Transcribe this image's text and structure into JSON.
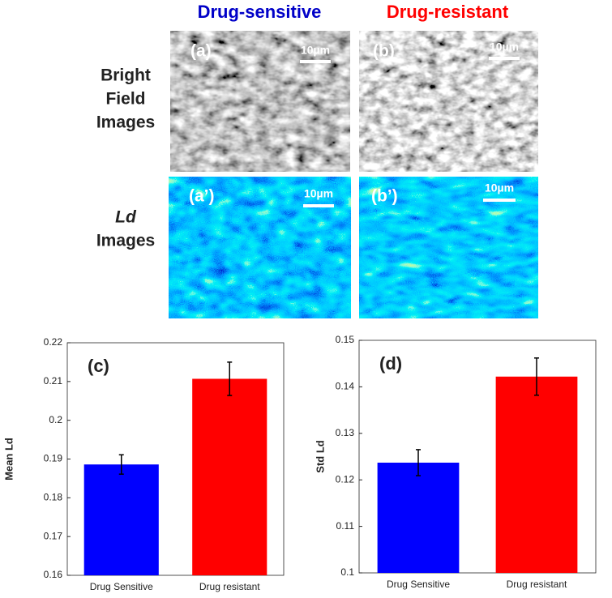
{
  "figure": {
    "column_titles": [
      "Drug-sensitive",
      "Drug-resistant"
    ],
    "row_titles": [
      [
        "Bright",
        "Field",
        "Images"
      ],
      [
        "Ld",
        "Images"
      ]
    ],
    "panel_labels": [
      "(a)",
      "(b)",
      "(a’)",
      "(b’)"
    ],
    "scale_bars": [
      "10µm",
      "10µm",
      "10µm",
      "10µm"
    ]
  },
  "chart_data": [
    {
      "type": "bar",
      "panel_label": "(c)",
      "y_label": "Mean Ld",
      "categories": [
        "Drug Sensitive",
        "Drug resistant"
      ],
      "values": [
        0.1886,
        0.2107
      ],
      "errors": [
        0.0025,
        0.0043
      ],
      "colors": [
        "#0000ff",
        "#ff0000"
      ],
      "ylim": [
        0.16,
        0.22
      ],
      "yticks": [
        0.16,
        0.17,
        0.18,
        0.19,
        0.2,
        0.21,
        0.22
      ]
    },
    {
      "type": "bar",
      "panel_label": "(d)",
      "y_label": "Std Ld",
      "categories": [
        "Drug Sensitive",
        "Drug resistant"
      ],
      "values": [
        0.1237,
        0.1422
      ],
      "errors": [
        0.0028,
        0.004
      ],
      "colors": [
        "#0000ff",
        "#ff0000"
      ],
      "ylim": [
        0.1,
        0.15
      ],
      "yticks": [
        0.1,
        0.11,
        0.12,
        0.13,
        0.14,
        0.15
      ]
    }
  ]
}
